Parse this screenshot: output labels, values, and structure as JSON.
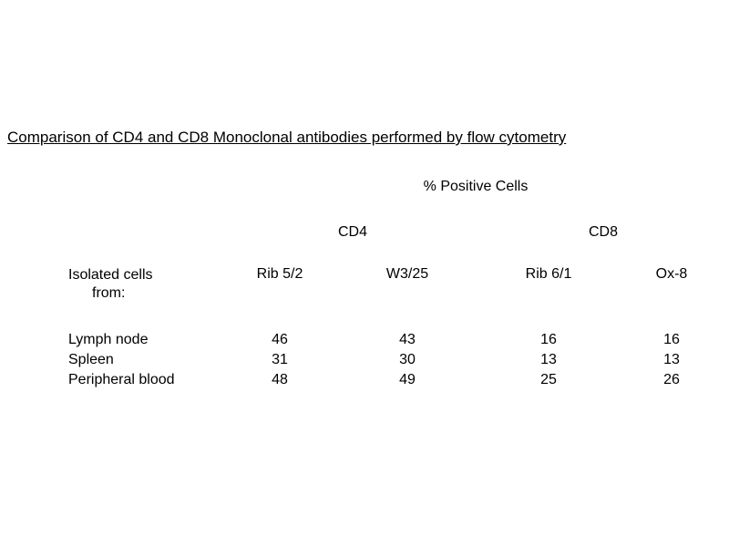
{
  "page": {
    "background_color": "#ffffff",
    "text_color": "#000000"
  },
  "chart_data": {
    "type": "table",
    "title": "Comparison of CD4 and CD8 Monoclonal antibodies performed by flow cytometry",
    "subtitle": "% Positive Cells",
    "column_groups": [
      {
        "label": "CD4",
        "columns": [
          "Rib 5/2",
          "W3/25"
        ]
      },
      {
        "label": "CD8",
        "columns": [
          "Rib 6/1",
          "Ox-8"
        ]
      }
    ],
    "columns": [
      "Rib 5/2",
      "W3/25",
      "Rib 6/1",
      "Ox-8"
    ],
    "row_header": {
      "line1": "Isolated cells",
      "line2": "from:"
    },
    "rows": [
      {
        "label": "Lymph node",
        "values": [
          46,
          43,
          16,
          16
        ]
      },
      {
        "label": "Spleen",
        "values": [
          31,
          30,
          13,
          13
        ]
      },
      {
        "label": "Peripheral blood",
        "values": [
          48,
          49,
          25,
          26
        ]
      }
    ]
  }
}
